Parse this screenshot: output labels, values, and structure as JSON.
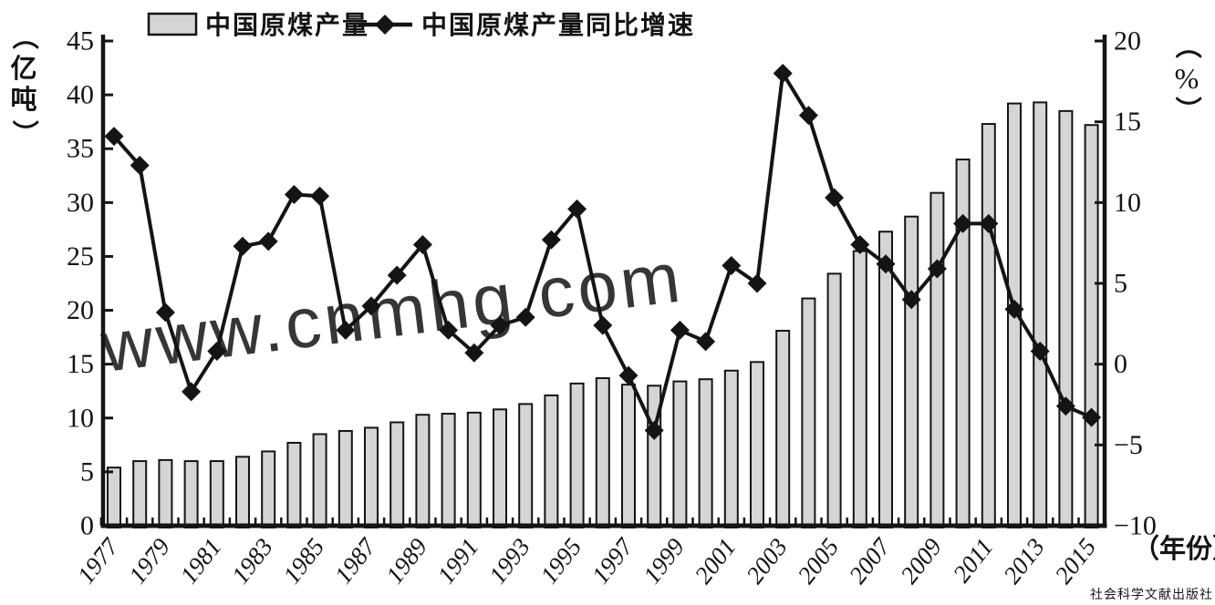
{
  "chart_data": {
    "type": "bar+line combo",
    "title": "",
    "categories": [
      1977,
      1978,
      1979,
      1980,
      1981,
      1982,
      1983,
      1984,
      1985,
      1986,
      1987,
      1988,
      1989,
      1990,
      1991,
      1992,
      1993,
      1994,
      1995,
      1996,
      1997,
      1998,
      1999,
      2000,
      2001,
      2002,
      2003,
      2004,
      2005,
      2006,
      2007,
      2008,
      2009,
      2010,
      2011,
      2012,
      2013,
      2014,
      2015
    ],
    "series": [
      {
        "name": "中国原煤产量",
        "type": "bar",
        "axis": "left",
        "unit": "亿吨",
        "values": [
          5.4,
          6.0,
          6.1,
          6.0,
          6.0,
          6.4,
          6.9,
          7.7,
          8.5,
          8.8,
          9.1,
          9.6,
          10.3,
          10.4,
          10.5,
          10.8,
          11.3,
          12.1,
          13.2,
          13.7,
          13.1,
          13.0,
          13.4,
          13.6,
          14.4,
          15.2,
          18.1,
          21.1,
          23.4,
          25.5,
          27.3,
          28.7,
          30.9,
          34.0,
          37.3,
          39.2,
          39.3,
          38.5,
          37.2
        ]
      },
      {
        "name": "中国原煤产量同比增速",
        "type": "line",
        "axis": "right",
        "unit": "%",
        "values": [
          14.1,
          12.3,
          3.2,
          -1.7,
          0.8,
          7.3,
          7.6,
          10.5,
          10.4,
          2.1,
          3.6,
          5.5,
          7.4,
          2.1,
          0.7,
          2.4,
          2.9,
          7.7,
          9.6,
          2.4,
          -0.7,
          -4.1,
          2.1,
          1.4,
          6.1,
          5.0,
          18.0,
          15.4,
          10.3,
          7.4,
          6.2,
          4.0,
          5.9,
          8.7,
          8.7,
          3.4,
          0.8,
          -2.6,
          -3.3
        ]
      }
    ],
    "left_axis": {
      "label": "（亿吨）",
      "min": 0,
      "max": 45,
      "step": 5,
      "ticks": [
        0,
        5,
        10,
        15,
        20,
        25,
        30,
        35,
        40,
        45
      ]
    },
    "right_axis": {
      "label": "（%）",
      "min": -10,
      "max": 20,
      "step": 5,
      "ticks": [
        20,
        15,
        10,
        5,
        0,
        -5,
        -10
      ]
    },
    "x_axis": {
      "label": "（年份）",
      "tick_labels": [
        "1977",
        "1979",
        "1981",
        "1983",
        "1985",
        "1987",
        "1989",
        "1991",
        "1993",
        "1995",
        "1997",
        "1999",
        "2001",
        "2003",
        "2005",
        "2007",
        "2009",
        "2011",
        "2013",
        "2015"
      ]
    },
    "legend_position": "top",
    "grid": false
  },
  "legend": {
    "bar_label": "中国原煤产量",
    "line_label": "中国原煤产量同比增速",
    "bar_swatch_icon": "gray-rectangle-swatch",
    "line_swatch_icon": "diamond-marker-line"
  },
  "axes_text": {
    "left_unit": "（亿吨）",
    "right_unit_symbol": "%",
    "x_unit": "（年份）"
  },
  "watermark": {
    "text": "www.cnmhg.com"
  },
  "publisher": {
    "text": "社会科学文献出版社"
  },
  "colors": {
    "bar_fill": "#d5d5d5",
    "ink": "#141414",
    "watermark": "#f6b2a0",
    "publisher_text": "#dcdcdc",
    "background": "#ffffff"
  }
}
